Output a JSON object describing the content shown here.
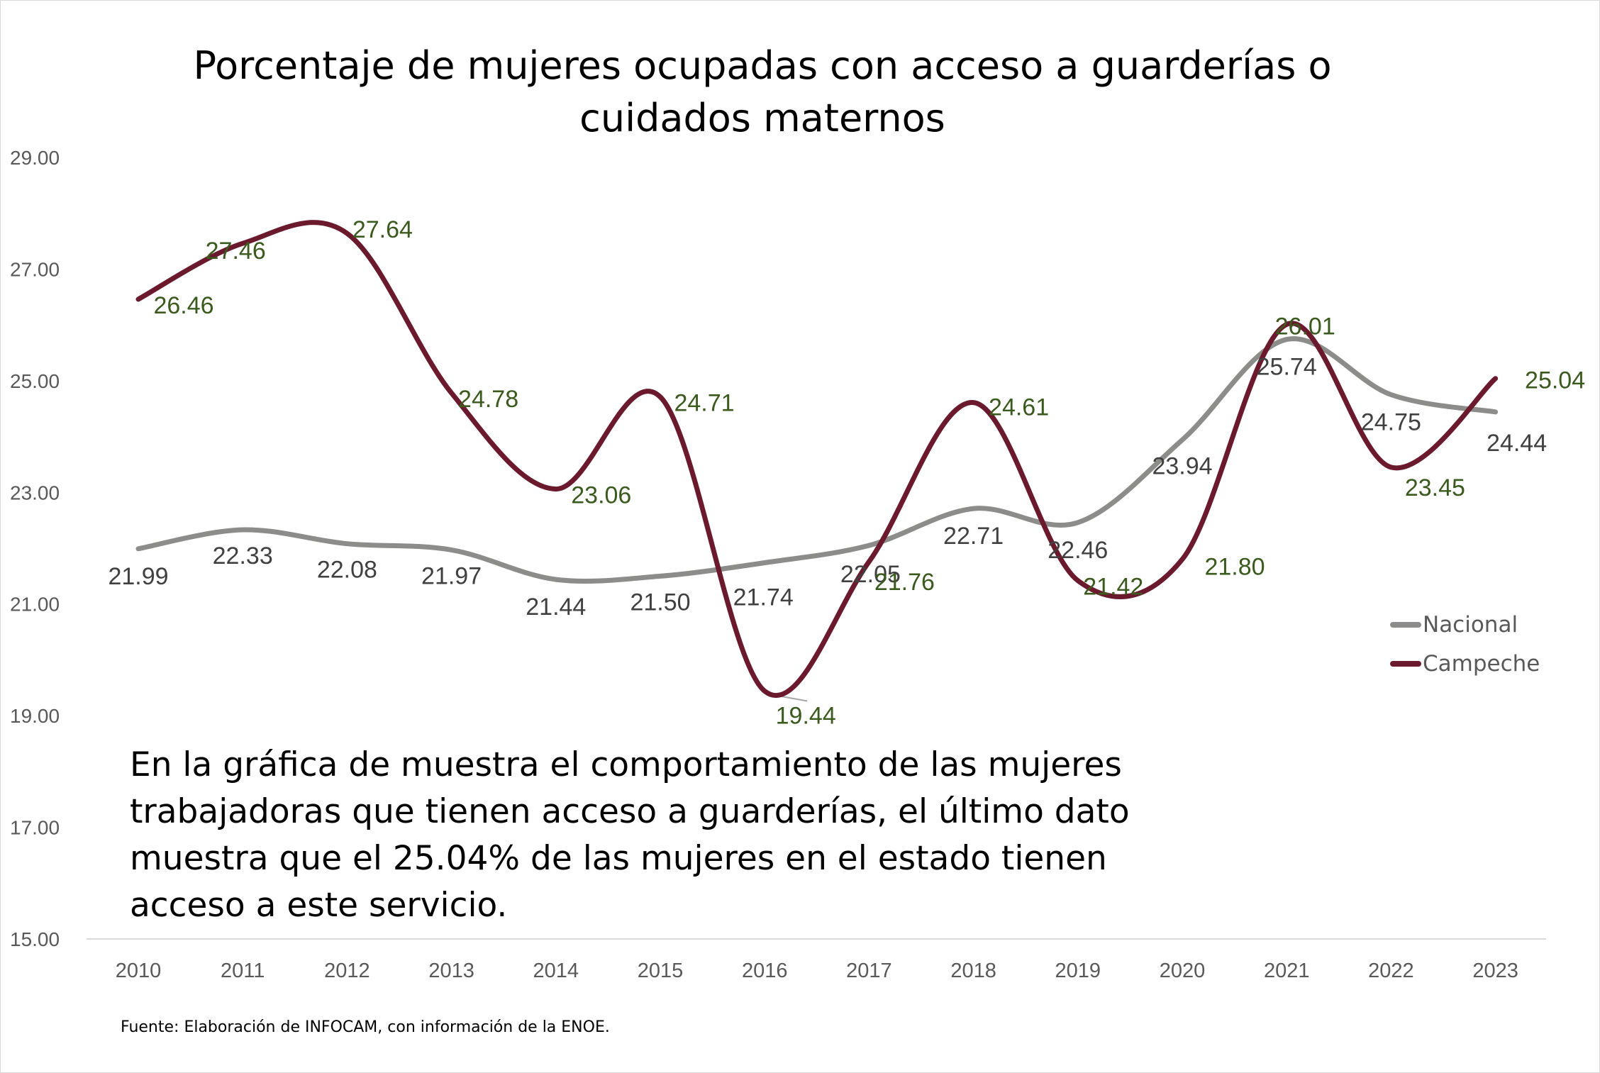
{
  "chart_data": {
    "type": "line",
    "title_lines": [
      "Porcentaje de mujeres ocupadas con acceso a guarderías o",
      "cuidados maternos"
    ],
    "title": "Porcentaje de mujeres ocupadas con acceso a guarderías o cuidados maternos",
    "categories": [
      "2010",
      "2011",
      "2012",
      "2013",
      "2014",
      "2015",
      "2016",
      "2017",
      "2018",
      "2019",
      "2020",
      "2021",
      "2022",
      "2023"
    ],
    "y_ticks": [
      "15.00",
      "17.00",
      "19.00",
      "21.00",
      "23.00",
      "25.00",
      "27.00",
      "29.00"
    ],
    "ylim": [
      15,
      29
    ],
    "grid": false,
    "legend_position": "right",
    "series": [
      {
        "name": "Nacional",
        "color": "#8c8c8a",
        "label_color": "#404040",
        "values": [
          21.99,
          22.33,
          22.08,
          21.97,
          21.44,
          21.5,
          21.74,
          22.05,
          22.71,
          22.46,
          23.94,
          25.74,
          24.75,
          24.44
        ],
        "labels": [
          "21.99",
          "22.33",
          "22.08",
          "21.97",
          "21.44",
          "21.50",
          "21.74",
          "22.05",
          "22.71",
          "22.46",
          "23.94",
          "25.74",
          "24.75",
          "24.44"
        ]
      },
      {
        "name": "Campeche",
        "color": "#6b1a2e",
        "label_color": "#3b5a1e",
        "values": [
          26.46,
          27.46,
          27.64,
          24.78,
          23.06,
          24.71,
          19.44,
          21.76,
          24.61,
          21.42,
          21.8,
          26.01,
          23.45,
          25.04
        ],
        "labels": [
          "26.46",
          "27.46",
          "27.64",
          "24.78",
          "23.06",
          "24.71",
          "19.44",
          "21.76",
          "24.61",
          "21.42",
          "21.80",
          "26.01",
          "23.45",
          "25.04"
        ]
      }
    ]
  },
  "note_lines": [
    "En la gráfica de muestra el comportamiento de las mujeres",
    "trabajadoras que tienen acceso a guarderías, el último dato",
    "muestra que el 25.04% de las mujeres en el estado tienen",
    "acceso a este servicio."
  ],
  "source": "Fuente: Elaboración de INFOCAM, con información de la ENOE."
}
